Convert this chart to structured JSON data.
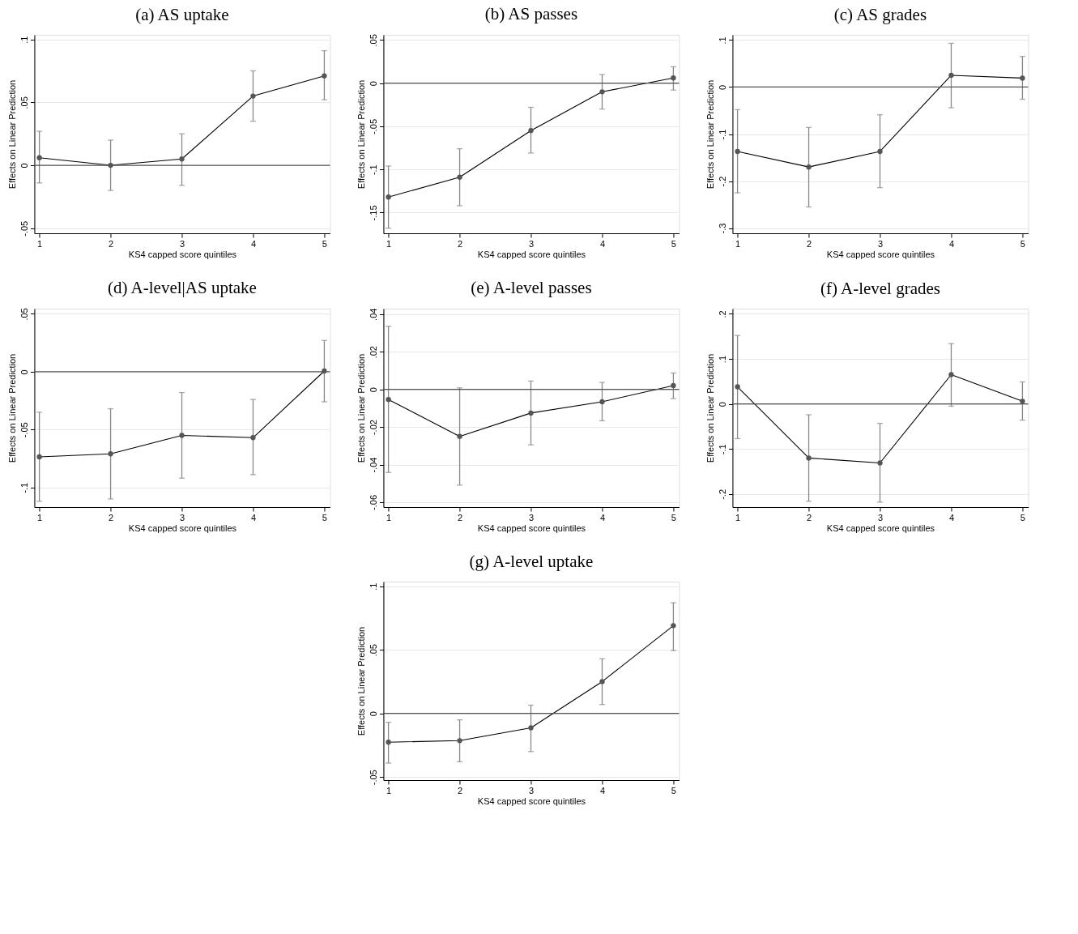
{
  "chart_data": [
    {
      "type": "line",
      "title": "(a) AS uptake",
      "xlabel": "KS4 capped score quintiles",
      "ylabel": "Effects on Linear Prediction",
      "x": [
        1,
        2,
        3,
        4,
        5
      ],
      "xlim": [
        0.93,
        5.08
      ],
      "xticks": [
        1,
        2,
        3,
        4,
        5
      ],
      "ylim": [
        -0.054,
        0.1036
      ],
      "yticks": [
        {
          "value": -0.05,
          "label": "-.05"
        },
        {
          "value": 0,
          "label": "0"
        },
        {
          "value": 0.05,
          "label": ".05"
        },
        {
          "value": 0.1,
          "label": ".1"
        }
      ],
      "grid": "y",
      "marker": "circle",
      "ref_lines": [
        {
          "axis": "y",
          "value": 0,
          "color": "#555555"
        }
      ],
      "series": [
        {
          "color": "#555555",
          "values": [
            0.006,
            0.0,
            0.005,
            0.055,
            0.071
          ],
          "errors": [
            [
              -0.014,
              0.027
            ],
            [
              -0.02,
              0.02
            ],
            [
              -0.016,
              0.025
            ],
            [
              0.035,
              0.075
            ],
            [
              0.052,
              0.091
            ]
          ]
        }
      ]
    },
    {
      "type": "line",
      "title": "(b) AS passes",
      "xlabel": "KS4 capped score quintiles",
      "ylabel": "Effects on Linear Prediction",
      "x": [
        1,
        2,
        3,
        4,
        5
      ],
      "xlim": [
        0.93,
        5.08
      ],
      "xticks": [
        1,
        2,
        3,
        4,
        5
      ],
      "ylim": [
        -0.174,
        0.056
      ],
      "yticks": [
        {
          "value": -0.15,
          "label": "-.15"
        },
        {
          "value": -0.1,
          "label": "-.1"
        },
        {
          "value": -0.05,
          "label": "-.05"
        },
        {
          "value": 0,
          "label": "0"
        },
        {
          "value": 0.05,
          "label": ".05"
        }
      ],
      "grid": "y",
      "marker": "circle",
      "ref_lines": [
        {
          "axis": "y",
          "value": 0,
          "color": "#555555"
        }
      ],
      "series": [
        {
          "color": "#555555",
          "values": [
            -0.132,
            -0.109,
            -0.055,
            -0.01,
            0.006
          ],
          "errors": [
            [
              -0.168,
              -0.096
            ],
            [
              -0.142,
              -0.076
            ],
            [
              -0.081,
              -0.028
            ],
            [
              -0.03,
              0.01
            ],
            [
              -0.008,
              0.019
            ]
          ]
        }
      ]
    },
    {
      "type": "line",
      "title": "(c) AS grades",
      "xlabel": "KS4 capped score quintiles",
      "ylabel": "Effects on Linear Prediction",
      "x": [
        1,
        2,
        3,
        4,
        5
      ],
      "xlim": [
        0.93,
        5.08
      ],
      "xticks": [
        1,
        2,
        3,
        4,
        5
      ],
      "ylim": [
        -0.311,
        0.111
      ],
      "yticks": [
        {
          "value": -0.3,
          "label": "-.3"
        },
        {
          "value": -0.2,
          "label": "-.2"
        },
        {
          "value": -0.1,
          "label": "-.1"
        },
        {
          "value": 0,
          "label": "0"
        },
        {
          "value": 0.1,
          "label": ".1"
        }
      ],
      "grid": "y",
      "marker": "circle",
      "ref_lines": [
        {
          "axis": "y",
          "value": 0,
          "color": "#555555"
        }
      ],
      "series": [
        {
          "color": "#555555",
          "values": [
            -0.137,
            -0.17,
            -0.137,
            0.025,
            0.019
          ],
          "errors": [
            [
              -0.225,
              -0.048
            ],
            [
              -0.255,
              -0.086
            ],
            [
              -0.214,
              -0.059
            ],
            [
              -0.044,
              0.093
            ],
            [
              -0.026,
              0.065
            ]
          ]
        }
      ]
    },
    {
      "type": "line",
      "title": "(d) A-level|AS uptake",
      "xlabel": "KS4 capped score quintiles",
      "ylabel": "Effects on Linear Prediction",
      "x": [
        1,
        2,
        3,
        4,
        5
      ],
      "xlim": [
        0.93,
        5.08
      ],
      "xticks": [
        1,
        2,
        3,
        4,
        5
      ],
      "ylim": [
        -0.117,
        0.0545
      ],
      "yticks": [
        {
          "value": -0.1,
          "label": "-.1"
        },
        {
          "value": -0.05,
          "label": "-.05"
        },
        {
          "value": 0,
          "label": "0"
        },
        {
          "value": 0.05,
          "label": ".05"
        }
      ],
      "grid": "y",
      "marker": "circle",
      "ref_lines": [
        {
          "axis": "y",
          "value": 0,
          "color": "#555555"
        }
      ],
      "series": [
        {
          "color": "#555555",
          "values": [
            -0.0736,
            -0.071,
            -0.055,
            -0.057,
            0.0006
          ],
          "errors": [
            [
              -0.112,
              -0.035
            ],
            [
              -0.11,
              -0.032
            ],
            [
              -0.092,
              -0.018
            ],
            [
              -0.089,
              -0.024
            ],
            [
              -0.026,
              0.027
            ]
          ]
        }
      ]
    },
    {
      "type": "line",
      "title": "(e) A-level passes",
      "xlabel": "KS4 capped score quintiles",
      "ylabel": "Effects on Linear Prediction",
      "x": [
        1,
        2,
        3,
        4,
        5
      ],
      "xlim": [
        0.93,
        5.08
      ],
      "xticks": [
        1,
        2,
        3,
        4,
        5
      ],
      "ylim": [
        -0.0626,
        0.0429
      ],
      "yticks": [
        {
          "value": -0.06,
          "label": "-.06"
        },
        {
          "value": -0.04,
          "label": "-.04"
        },
        {
          "value": -0.02,
          "label": "-.02"
        },
        {
          "value": 0,
          "label": "0"
        },
        {
          "value": 0.02,
          "label": ".02"
        },
        {
          "value": 0.04,
          "label": ".04"
        }
      ],
      "grid": "y",
      "marker": "circle",
      "ref_lines": [
        {
          "axis": "y",
          "value": 0,
          "color": "#555555"
        }
      ],
      "series": [
        {
          "color": "#555555",
          "values": [
            -0.0054,
            -0.025,
            -0.0126,
            -0.0066,
            0.002
          ],
          "errors": [
            [
              -0.0442,
              0.0335
            ],
            [
              -0.0509,
              0.0008
            ],
            [
              -0.0295,
              0.0044
            ],
            [
              -0.0167,
              0.0037
            ],
            [
              -0.0049,
              0.0087
            ]
          ]
        }
      ]
    },
    {
      "type": "line",
      "title": "(f) A-level grades",
      "xlabel": "KS4 capped score quintiles",
      "ylabel": "Effects on Linear Prediction",
      "x": [
        1,
        2,
        3,
        4,
        5
      ],
      "xlim": [
        0.93,
        5.08
      ],
      "xticks": [
        1,
        2,
        3,
        4,
        5
      ],
      "ylim": [
        -0.229,
        0.2116
      ],
      "yticks": [
        {
          "value": -0.2,
          "label": "-.2"
        },
        {
          "value": -0.1,
          "label": "-.1"
        },
        {
          "value": 0,
          "label": "0"
        },
        {
          "value": 0.1,
          "label": ".1"
        },
        {
          "value": 0.2,
          "label": ".2"
        }
      ],
      "grid": "y",
      "marker": "circle",
      "ref_lines": [
        {
          "axis": "y",
          "value": 0,
          "color": "#555555"
        }
      ],
      "series": [
        {
          "color": "#555555",
          "values": [
            0.038,
            -0.12,
            -0.131,
            0.065,
            0.006
          ],
          "errors": [
            [
              -0.077,
              0.152
            ],
            [
              -0.216,
              -0.024
            ],
            [
              -0.218,
              -0.043
            ],
            [
              -0.005,
              0.134
            ],
            [
              -0.036,
              0.049
            ]
          ]
        }
      ]
    },
    {
      "type": "line",
      "title": "(g) A-level uptake",
      "xlabel": "KS4 capped score quintiles",
      "ylabel": "Effects on Linear Prediction",
      "x": [
        1,
        2,
        3,
        4,
        5
      ],
      "xlim": [
        0.93,
        5.08
      ],
      "xticks": [
        1,
        2,
        3,
        4,
        5
      ],
      "ylim": [
        -0.0524,
        0.1036
      ],
      "yticks": [
        {
          "value": -0.05,
          "label": "-.05"
        },
        {
          "value": 0,
          "label": "0"
        },
        {
          "value": 0.05,
          "label": ".05"
        },
        {
          "value": 0.1,
          "label": ".1"
        }
      ],
      "grid": "y",
      "marker": "circle",
      "ref_lines": [
        {
          "axis": "y",
          "value": 0,
          "color": "#555555"
        }
      ],
      "series": [
        {
          "color": "#555555",
          "values": [
            -0.0226,
            -0.0214,
            -0.0113,
            0.025,
            0.069
          ],
          "errors": [
            [
              -0.039,
              -0.007
            ],
            [
              -0.038,
              -0.005
            ],
            [
              -0.03,
              0.0065
            ],
            [
              0.007,
              0.043
            ],
            [
              0.0494,
              0.087
            ]
          ]
        }
      ]
    }
  ]
}
